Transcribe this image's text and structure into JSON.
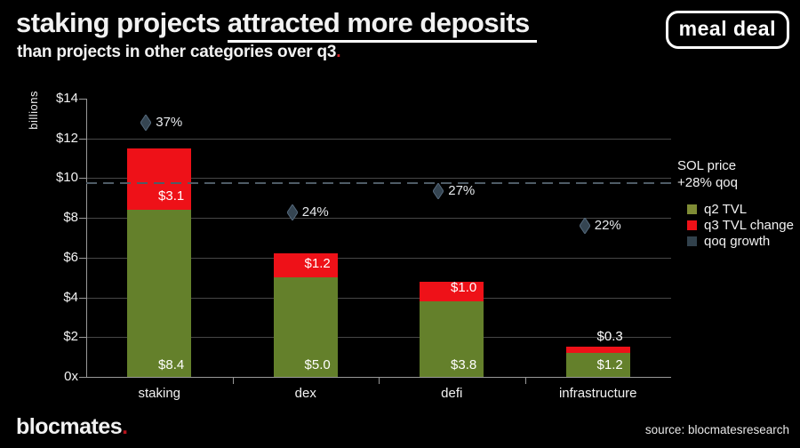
{
  "header": {
    "title_part1": "staking projects ",
    "title_part2_underlined": "attracted more deposits",
    "subtitle": "than projects in other categories over q3",
    "subtitle_period": ".",
    "logo": "meal deal"
  },
  "footer": {
    "brand": "blocmates",
    "brand_period": ".",
    "source": "source: blocmatesresearch"
  },
  "colors": {
    "background": "#000000",
    "q2_green": "#64802b",
    "q3_red": "#ee1118",
    "growth_slate": "#354552",
    "legend_green": "#7f8c35",
    "legend_red": "#ee1118",
    "legend_slate": "#31414c",
    "gridline": "#474747",
    "axis": "#999999",
    "sol_line": "#4f5c66",
    "accent_red": "#d42027"
  },
  "chart_data": {
    "type": "bar",
    "stacked": true,
    "title": "staking projects attracted more deposits than projects in other categories over q3",
    "ylabel": "billions",
    "categories": [
      "staking",
      "dex",
      "defi",
      "infrastructure"
    ],
    "series": [
      {
        "name": "q2 TVL",
        "color_key": "q2_green",
        "values": [
          8.4,
          5.0,
          3.8,
          1.2
        ],
        "labels": [
          "$8.4",
          "$5.0",
          "$3.8",
          "$1.2"
        ]
      },
      {
        "name": "q3 TVL change",
        "color_key": "q3_red",
        "values": [
          3.1,
          1.2,
          1.0,
          0.3
        ],
        "labels": [
          "$3.1",
          "$1.2",
          "$1.0",
          "$0.3"
        ]
      },
      {
        "name": "qoq growth",
        "color_key": "growth_slate",
        "marker": "diamond",
        "values_pct": [
          37,
          24,
          27,
          22
        ],
        "labels": [
          "37%",
          "24%",
          "27%",
          "22%"
        ]
      }
    ],
    "y_axis": {
      "min": 0,
      "max": 14,
      "tick_step": 2,
      "unit": "billions",
      "tick_labels_top_to_bottom": [
        "$14",
        "$12",
        "$10",
        "$8",
        "$6",
        "$4",
        "$2",
        "0x"
      ]
    },
    "secondary_axis": {
      "min": 0,
      "max": 40.5,
      "unit": "%"
    },
    "reference_line": {
      "value": 9.8,
      "style": "dashed",
      "label_line1": "SOL price",
      "label_line2": "+28% qoq"
    },
    "legend_position": "right",
    "grid": "horizontal"
  }
}
